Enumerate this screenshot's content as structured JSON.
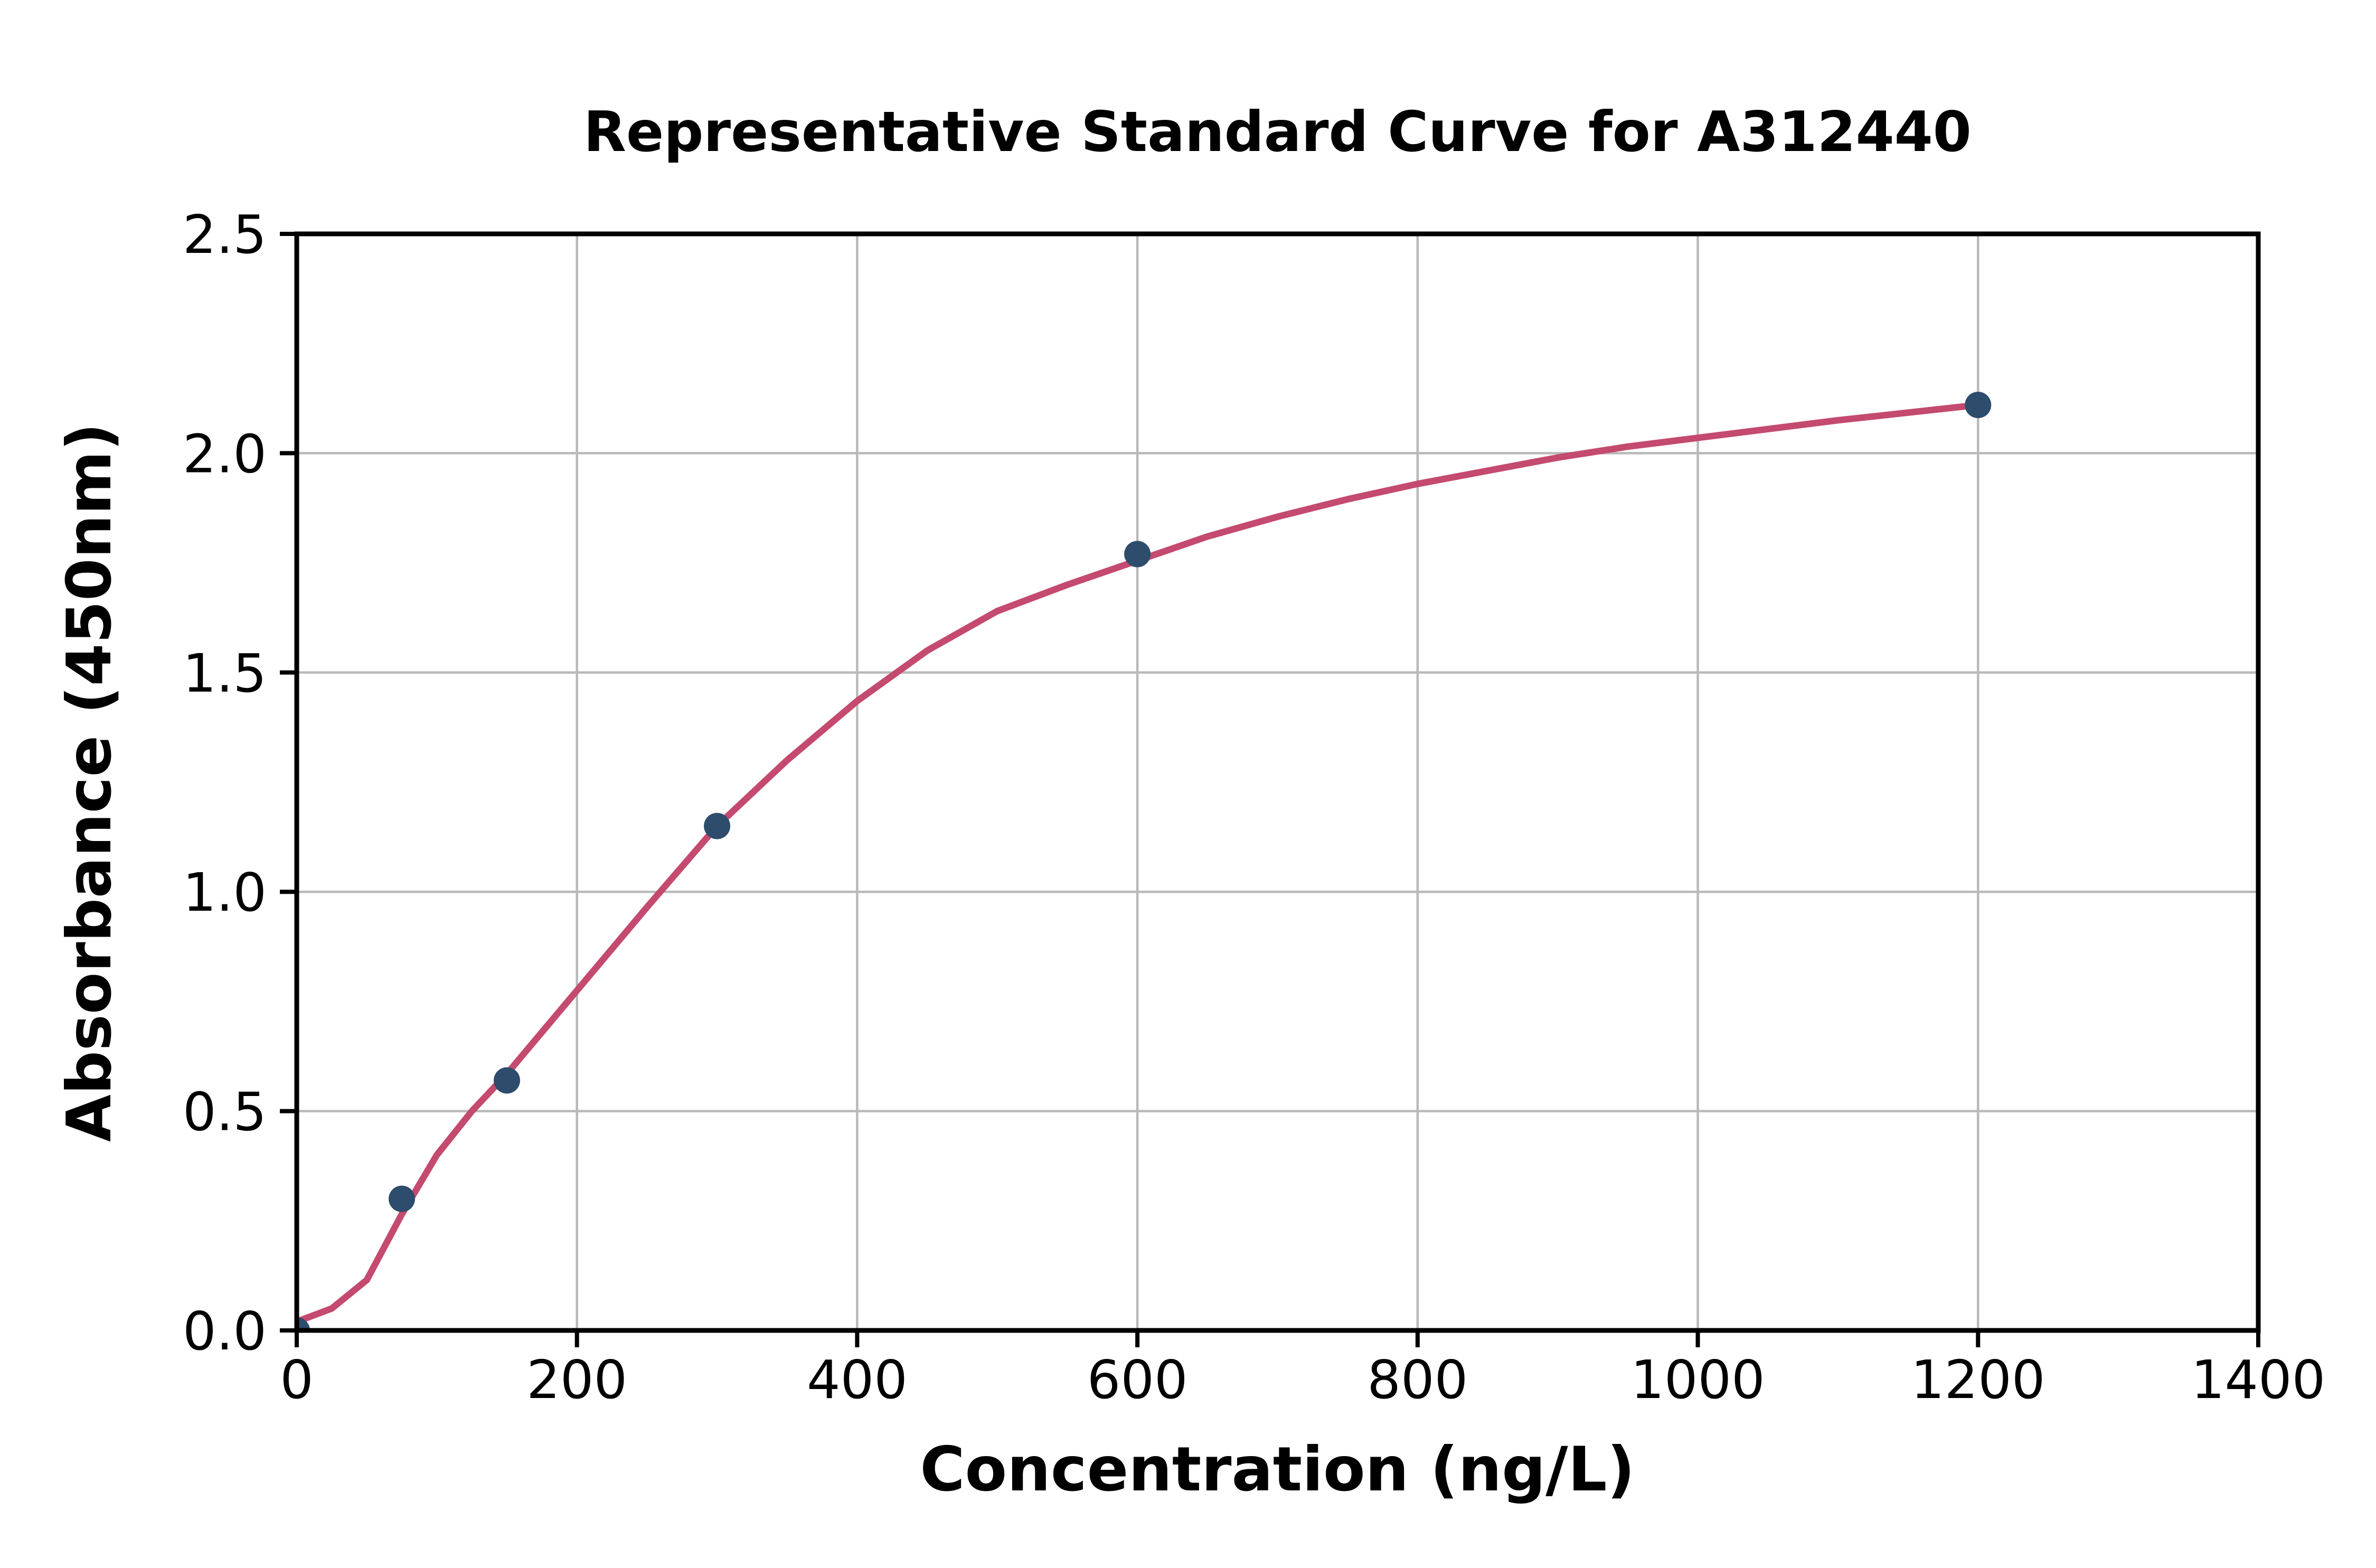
{
  "chart_data": {
    "type": "scatter",
    "title": "Representative Standard Curve for A312440",
    "xlabel": "Concentration (ng/L)",
    "ylabel": "Absorbance (450nm)",
    "xlim": [
      0,
      1400
    ],
    "ylim": [
      0,
      2.5
    ],
    "xticks": [
      0,
      200,
      400,
      600,
      800,
      1000,
      1200,
      1400
    ],
    "ytick_labels": [
      "0.0",
      "0.5",
      "1.0",
      "1.5",
      "2.0",
      "2.5"
    ],
    "grid": true,
    "legend": "none",
    "points": [
      {
        "x": 0,
        "y": 0.0
      },
      {
        "x": 75,
        "y": 0.3
      },
      {
        "x": 150,
        "y": 0.57
      },
      {
        "x": 300,
        "y": 1.15
      },
      {
        "x": 600,
        "y": 1.77
      },
      {
        "x": 1200,
        "y": 2.11
      }
    ],
    "fit_curve": {
      "model": "4PL sigmoidal fit",
      "samples": [
        [
          0,
          0.02
        ],
        [
          25,
          0.05
        ],
        [
          50,
          0.115
        ],
        [
          75,
          0.265
        ],
        [
          100,
          0.4
        ],
        [
          125,
          0.5
        ],
        [
          150,
          0.585
        ],
        [
          200,
          0.775
        ],
        [
          250,
          0.965
        ],
        [
          300,
          1.15
        ],
        [
          350,
          1.3
        ],
        [
          400,
          1.435
        ],
        [
          450,
          1.55
        ],
        [
          500,
          1.64
        ],
        [
          550,
          1.7
        ],
        [
          600,
          1.755
        ],
        [
          650,
          1.81
        ],
        [
          700,
          1.855
        ],
        [
          750,
          1.895
        ],
        [
          800,
          1.93
        ],
        [
          850,
          1.96
        ],
        [
          900,
          1.99
        ],
        [
          950,
          2.015
        ],
        [
          1000,
          2.035
        ],
        [
          1100,
          2.075
        ],
        [
          1200,
          2.11
        ]
      ]
    },
    "colors": {
      "point": "#2E4C6C",
      "curve": "#C44A6F",
      "grid": "#B9B9B9",
      "axis": "#000000",
      "text": "#000000",
      "background": "#FFFFFF"
    }
  }
}
